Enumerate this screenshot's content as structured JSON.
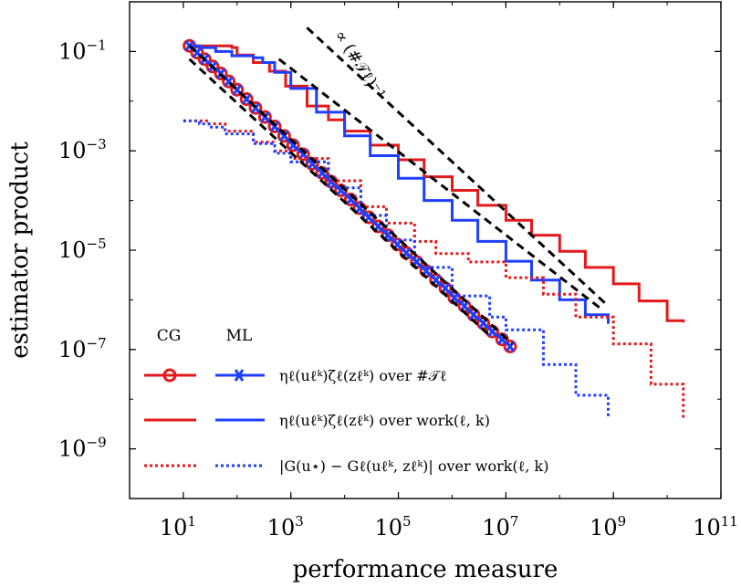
{
  "chart_data": {
    "type": "line",
    "xscale": "log",
    "yscale": "log",
    "xlim": [
      1,
      100000000000
    ],
    "ylim": [
      1e-10,
      1
    ],
    "xlabel": "performance measure",
    "ylabel": "estimator product",
    "xticks": [
      {
        "value": 10,
        "base": "10",
        "exp": "1"
      },
      {
        "value": 1000,
        "base": "10",
        "exp": "3"
      },
      {
        "value": 100000,
        "base": "10",
        "exp": "5"
      },
      {
        "value": 10000000,
        "base": "10",
        "exp": "7"
      },
      {
        "value": 1000000000,
        "base": "10",
        "exp": "9"
      },
      {
        "value": 100000000000,
        "base": "10",
        "exp": "11"
      }
    ],
    "yticks": [
      {
        "value": 0.1,
        "base": "10",
        "exp": "−1"
      },
      {
        "value": 0.001,
        "base": "10",
        "exp": "−3"
      },
      {
        "value": 1e-05,
        "base": "10",
        "exp": "−5"
      },
      {
        "value": 1e-07,
        "base": "10",
        "exp": "−7"
      },
      {
        "value": 1e-09,
        "base": "10",
        "exp": "−9"
      }
    ],
    "legend": {
      "placement": "bottom-left",
      "column_headers": [
        "CG",
        "ML"
      ],
      "rows": [
        "ηℓ(uℓᵏ)ζℓ(zℓᵏ) over #𝒯ℓ",
        "ηℓ(uℓᵏ)ζℓ(zℓᵏ) over work(ℓ, k)",
        "|G(u⋆) − Gℓ(uℓᵏ, zℓᵏ)| over work(ℓ, k)"
      ]
    },
    "annotation": "∝ (#𝒯ℓ)⁻¹",
    "series": [
      {
        "group": "CG",
        "style": "circle-marker",
        "color": "#e31a1c",
        "x": [
          13,
          18,
          25,
          35,
          50,
          70,
          100,
          150,
          220,
          330,
          500,
          750,
          1100,
          1700,
          2500,
          3800,
          5600,
          8500,
          13000,
          19000,
          28000,
          42000,
          64000,
          96000,
          140000,
          220000,
          330000,
          500000,
          750000,
          1100000,
          1700000,
          2500000,
          3800000,
          5600000,
          8500000,
          12000000
        ],
        "y": [
          0.13,
          0.095,
          0.07,
          0.05,
          0.036,
          0.025,
          0.017,
          0.011,
          0.0073,
          0.0048,
          0.0031,
          0.002,
          0.0013,
          0.00085,
          0.00055,
          0.00036,
          0.00024,
          0.00016,
          0.000105,
          7e-05,
          4.6e-05,
          3e-05,
          2e-05,
          1.3e-05,
          8.8e-06,
          5.8e-06,
          3.8e-06,
          2.5e-06,
          1.7e-06,
          1.1e-06,
          7.5e-07,
          5e-07,
          3.4e-07,
          2.3e-07,
          1.6e-07,
          1.15e-07
        ]
      },
      {
        "group": "ML",
        "style": "cross-marker",
        "color": "#1f3fff",
        "x": [
          13,
          18,
          25,
          35,
          50,
          70,
          100,
          150,
          220,
          330,
          500,
          750,
          1100,
          1700,
          2500,
          3800,
          5600,
          8500,
          13000,
          19000,
          28000,
          42000,
          64000,
          96000,
          140000,
          220000,
          330000,
          500000,
          750000,
          1100000,
          1700000,
          2500000,
          3800000,
          5600000,
          8500000,
          12000000
        ],
        "y": [
          0.13,
          0.095,
          0.07,
          0.05,
          0.036,
          0.025,
          0.017,
          0.011,
          0.0073,
          0.0048,
          0.0031,
          0.002,
          0.0013,
          0.00085,
          0.00055,
          0.00036,
          0.00024,
          0.00016,
          0.000105,
          7e-05,
          4.6e-05,
          3e-05,
          2e-05,
          1.3e-05,
          8.8e-06,
          5.8e-06,
          3.8e-06,
          2.5e-06,
          1.7e-06,
          1.1e-06,
          7.5e-07,
          5e-07,
          3.4e-07,
          2.3e-07,
          1.6e-07,
          1.15e-07
        ]
      },
      {
        "group": "CG",
        "style": "solid",
        "color": "#e31a1c",
        "x": [
          13,
          20,
          40,
          80,
          100,
          200,
          400,
          800,
          2000,
          5000,
          10000,
          30000,
          100000,
          300000,
          1000000,
          3000000,
          10000000,
          30000000,
          100000000,
          300000000,
          1000000000,
          3000000000,
          10000000000,
          20000000000
        ],
        "y": [
          0.13,
          0.13,
          0.13,
          0.12,
          0.085,
          0.06,
          0.04,
          0.02,
          0.008,
          0.0042,
          0.0025,
          0.0013,
          0.00066,
          0.0003,
          0.00016,
          8e-05,
          4e-05,
          2e-05,
          9.5e-06,
          4.5e-06,
          2.1e-06,
          9.5e-07,
          3.8e-07,
          3.5e-07
        ]
      },
      {
        "group": "ML",
        "style": "solid",
        "color": "#1f3fff",
        "x": [
          13,
          20,
          40,
          80,
          200,
          300,
          500,
          1000,
          3000,
          10000,
          30000,
          100000,
          300000,
          1000000,
          3000000,
          10000000,
          30000000,
          100000000,
          300000000,
          800000000
        ],
        "y": [
          0.13,
          0.12,
          0.1,
          0.082,
          0.075,
          0.06,
          0.038,
          0.018,
          0.006,
          0.002,
          0.0008,
          0.00028,
          0.0001,
          4e-05,
          1.5e-05,
          6e-06,
          2.5e-06,
          1e-06,
          5e-07,
          3.3e-07
        ]
      },
      {
        "group": "CG",
        "style": "dotted",
        "color": "#e31a1c",
        "x": [
          10,
          20,
          30,
          60,
          200,
          500,
          1000,
          5000,
          20000,
          60000,
          200000,
          500000,
          2000000,
          10000000,
          50000000,
          200000000,
          1000000000,
          5000000000,
          20000000000
        ],
        "y": [
          0.004,
          0.004,
          0.0035,
          0.0025,
          0.0015,
          0.001,
          0.0007,
          0.00025,
          7.5e-05,
          3.5e-05,
          1.5e-05,
          8.5e-06,
          5.8e-06,
          2.8e-06,
          1.3e-06,
          4.5e-07,
          1.3e-07,
          2e-08,
          4e-09
        ]
      },
      {
        "group": "ML",
        "style": "dotted",
        "color": "#1f3fff",
        "x": [
          10,
          20,
          30,
          60,
          200,
          500,
          1000,
          5000,
          20000,
          60000,
          200000,
          1000000,
          5000000,
          10000000,
          50000000,
          200000000,
          800000000
        ],
        "y": [
          0.004,
          0.0035,
          0.003,
          0.0022,
          0.0014,
          0.0009,
          0.0006,
          0.00018,
          5e-05,
          1.6e-05,
          4.5e-06,
          1.2e-06,
          4.5e-07,
          2.5e-07,
          5e-08,
          1.2e-08,
          4e-09
        ]
      },
      {
        "group": "reference",
        "style": "dashed",
        "color": "#000000",
        "x": [
          2000,
          800000000
        ],
        "y": [
          0.3,
          7.5e-07
        ]
      },
      {
        "group": "reference",
        "style": "dashed",
        "color": "#000000",
        "x": [
          600,
          600000000
        ],
        "y": [
          0.07,
          6.5e-07
        ]
      },
      {
        "group": "reference",
        "style": "dashed",
        "color": "#000000",
        "x": [
          13,
          13000000
        ],
        "y": [
          0.13,
          1.3e-07
        ]
      },
      {
        "group": "reference",
        "style": "dashed",
        "color": "#000000",
        "x": [
          13,
          5000000
        ],
        "y": [
          0.07,
          1.9e-07
        ]
      }
    ]
  }
}
